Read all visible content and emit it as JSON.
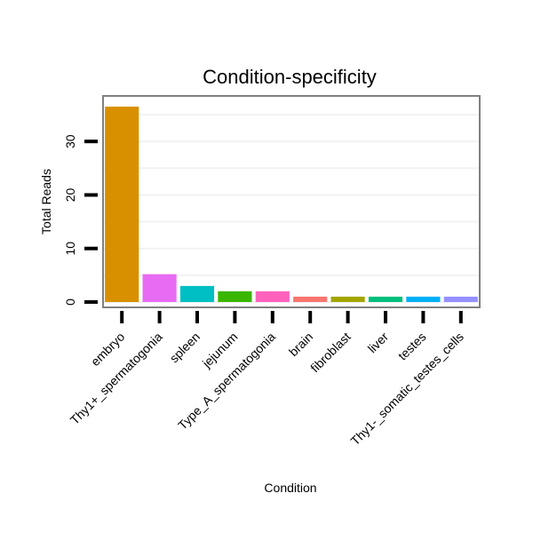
{
  "chart_data": {
    "type": "bar",
    "title": "Condition-specificity",
    "xlabel": "Condition",
    "ylabel": "Total Reads",
    "categories": [
      "embryo",
      "Thy1+_spermatogonia",
      "spleen",
      "jejunum",
      "Type_A_spermatogonia",
      "brain",
      "fibroblast",
      "liver",
      "testes",
      "Thy1-_somatic_testes_cells"
    ],
    "values": [
      36.5,
      5.2,
      3.0,
      2.0,
      2.0,
      1.0,
      1.0,
      1.0,
      1.0,
      1.0
    ],
    "colors": [
      "#D89000",
      "#E76BF3",
      "#00BFC4",
      "#39B600",
      "#FF62BC",
      "#F8766D",
      "#A3A500",
      "#00BF7D",
      "#00B0F6",
      "#9590FF"
    ],
    "ylim": [
      -1,
      38.5
    ],
    "yticks": [
      0,
      10,
      20,
      30
    ],
    "grid": true,
    "legend": "none"
  }
}
